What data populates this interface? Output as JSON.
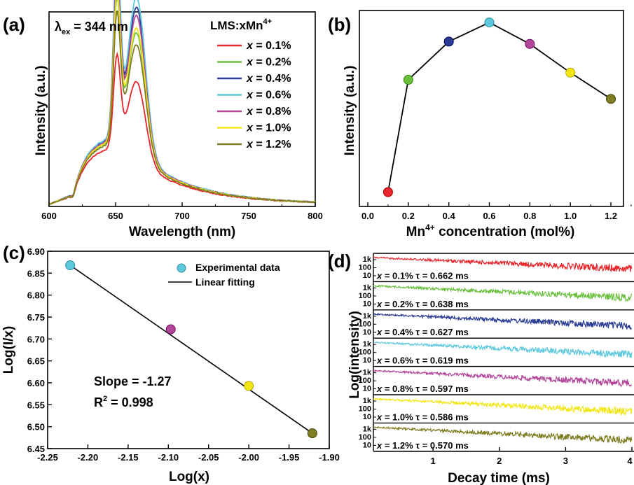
{
  "colors": {
    "s1": "#e8252a",
    "s2": "#6abf3e",
    "s3": "#2b3c93",
    "s4": "#5ec8dc",
    "s5": "#b2479a",
    "s6": "#f2e615",
    "s7": "#7f7d22",
    "line": "#000000"
  },
  "chart_data": [
    {
      "id": "a",
      "type": "line",
      "panel_label": "(a)",
      "xlabel": "Wavelength (nm)",
      "ylabel": "Intensity (a.u.)",
      "xlim": [
        600,
        800
      ],
      "xticks": [
        600,
        650,
        700,
        750,
        800
      ],
      "ylim": [
        0,
        1.15
      ],
      "annotation": {
        "lambda": "λ",
        "sub": "ex",
        "rest": " = 344 nm"
      },
      "legend_title": {
        "main": "LMS:xMn",
        "sup": "4+"
      },
      "series": [
        {
          "name": "x = 0.1%",
          "peak1": 0.62,
          "peak2": 0.55,
          "color_key": "s1"
        },
        {
          "name": "x = 0.2%",
          "peak1": 0.86,
          "peak2": 0.77,
          "color_key": "s2"
        },
        {
          "name": "x = 0.4%",
          "peak1": 0.98,
          "peak2": 0.87,
          "color_key": "s3"
        },
        {
          "name": "x = 0.6%",
          "peak1": 1.02,
          "peak2": 0.91,
          "color_key": "s4"
        },
        {
          "name": "x = 0.8%",
          "peak1": 0.94,
          "peak2": 0.84,
          "color_key": "s5"
        },
        {
          "name": "x = 1.0%",
          "peak1": 0.88,
          "peak2": 0.79,
          "color_key": "s6"
        },
        {
          "name": "x = 1.2%",
          "peak1": 0.8,
          "peak2": 0.72,
          "color_key": "s7"
        }
      ]
    },
    {
      "id": "b",
      "type": "line",
      "panel_label": "(b)",
      "xlabel": {
        "pre": "Mn",
        "sup": "4+",
        "post": " concentration (mol%)"
      },
      "ylabel": "Intensity (a.u.)",
      "xlim": [
        0.0,
        1.3
      ],
      "xticks": [
        0.0,
        0.2,
        0.4,
        0.6,
        0.8,
        1.0,
        1.2
      ],
      "ylim": [
        0.3,
        1.05
      ],
      "x": [
        0.1,
        0.2,
        0.4,
        0.6,
        0.8,
        1.0,
        1.2
      ],
      "y": [
        0.36,
        0.83,
        0.99,
        1.07,
        0.98,
        0.86,
        0.75
      ],
      "point_color_keys": [
        "s1",
        "s2",
        "s3",
        "s4",
        "s5",
        "s6",
        "s7"
      ]
    },
    {
      "id": "c",
      "type": "scatter",
      "panel_label": "(c)",
      "xlabel": "Log(x)",
      "ylabel": "Log(I/x)",
      "xlim": [
        -2.25,
        -1.9
      ],
      "xticks": [
        -2.25,
        -2.2,
        -2.15,
        -2.1,
        -2.05,
        -2.0,
        -1.95,
        -1.9
      ],
      "xtick_labels": [
        "-2.25",
        "-2.20",
        "-2.15",
        "-2.10",
        "-2.05",
        "-2.00",
        "-1.95",
        "-1.90"
      ],
      "ylim": [
        6.45,
        6.9
      ],
      "yticks": [
        6.45,
        6.5,
        6.55,
        6.6,
        6.65,
        6.7,
        6.75,
        6.8,
        6.85,
        6.9
      ],
      "ytick_labels": [
        "6.45",
        "6.50",
        "6.55",
        "6.60",
        "6.65",
        "6.70",
        "6.75",
        "6.80",
        "6.85",
        "6.90"
      ],
      "points": [
        {
          "x": -2.222,
          "y": 6.868,
          "color_key": "s4"
        },
        {
          "x": -2.097,
          "y": 6.722,
          "color_key": "s5"
        },
        {
          "x": -2.0,
          "y": 6.593,
          "color_key": "s6"
        },
        {
          "x": -1.921,
          "y": 6.485,
          "color_key": "s7"
        }
      ],
      "fit": {
        "x": [
          -2.222,
          -1.921
        ],
        "y": [
          6.868,
          6.485
        ]
      },
      "legend": {
        "points": "Experimental data",
        "line": "Linear fitting"
      },
      "slope_text": "Slope = -1.27",
      "r2": {
        "pre": "R",
        "sup": "2",
        "post": " = 0.998"
      }
    },
    {
      "id": "d",
      "type": "line",
      "panel_label": "(d)",
      "xlabel": "Decay time (ms)",
      "ylabel": "Log(intensity)",
      "xlim": [
        0.1,
        4.0
      ],
      "xticks": [
        1,
        2,
        3,
        4
      ],
      "yticks": [
        "1k",
        "100",
        "10"
      ],
      "series": [
        {
          "x_label": "x",
          "conc": " = 0.1%",
          "tau_label": "τ",
          "tau": " = 0.662 ms",
          "tau_ms": 0.662,
          "color_key": "s1"
        },
        {
          "x_label": "x",
          "conc": " = 0.2%",
          "tau_label": "τ",
          "tau": " = 0.638 ms",
          "tau_ms": 0.638,
          "color_key": "s2"
        },
        {
          "x_label": "x",
          "conc": " = 0.4%",
          "tau_label": "τ",
          "tau": " = 0.627 ms",
          "tau_ms": 0.627,
          "color_key": "s3"
        },
        {
          "x_label": "x",
          "conc": " = 0.6%",
          "tau_label": "τ",
          "tau": " = 0.619 ms",
          "tau_ms": 0.619,
          "color_key": "s4"
        },
        {
          "x_label": "x",
          "conc": " = 0.8%",
          "tau_label": "τ",
          "tau": " = 0.597 ms",
          "tau_ms": 0.597,
          "color_key": "s5"
        },
        {
          "x_label": "x",
          "conc": " = 1.0%",
          "tau_label": "τ",
          "tau": " = 0.586 ms",
          "tau_ms": 0.586,
          "color_key": "s6"
        },
        {
          "x_label": "x",
          "conc": " = 1.2%",
          "tau_label": "τ",
          "tau": " = 0.570 ms",
          "tau_ms": 0.57,
          "color_key": "s7"
        }
      ]
    }
  ]
}
